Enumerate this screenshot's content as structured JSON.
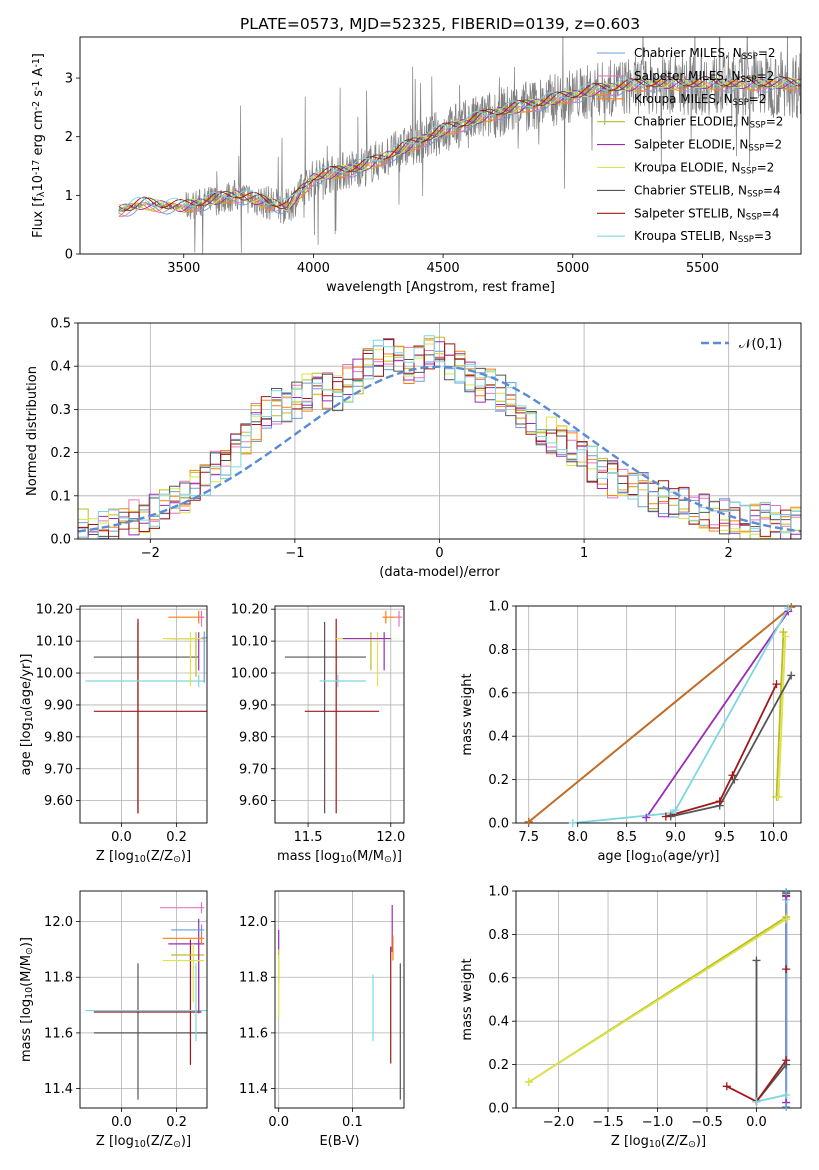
{
  "title": "PLATE=0573, MJD=52325, FIBERID=0139, z=0.603",
  "colors": {
    "grid": "#b0b0b0",
    "data_flux": "#808080",
    "gaussian": "#5b8bd6"
  },
  "chart_data": [
    {
      "id": "spectrum",
      "type": "line",
      "xlabel": "wavelength [Angstrom, rest frame]",
      "ylabel": "Flux [f$_\\lambda$10$^{-17}$ erg cm$^{-2}$ s$^{-1}$ A$^{-1}$]",
      "xlim": [
        3100,
        5880
      ],
      "ylim": [
        0,
        3.7
      ],
      "xticks": [
        3500,
        4000,
        4500,
        5000,
        5500
      ],
      "yticks": [
        0,
        1,
        2,
        3
      ],
      "grid": false,
      "legend_position": "right",
      "data_range": [
        3250,
        5880
      ],
      "observed_trend": {
        "x": [
          3250,
          3350,
          3500,
          3700,
          3900,
          4000,
          4200,
          4350,
          4500,
          4700,
          4900,
          5100,
          5300,
          5500,
          5700,
          5880
        ],
        "y": [
          0.75,
          0.85,
          0.8,
          1.0,
          0.8,
          1.3,
          1.5,
          1.8,
          2.1,
          2.4,
          2.6,
          2.8,
          2.9,
          2.9,
          2.9,
          2.9
        ]
      },
      "series": [
        {
          "name": "Chabrier MILES, N$_{SSP}$=2",
          "color": "#6a9fd8"
        },
        {
          "name": "Salpeter MILES, N$_{SSP}$=2",
          "color": "#e377c2"
        },
        {
          "name": "Kroupa MILES, N$_{SSP}$=2",
          "color": "#ff7f0e"
        },
        {
          "name": "Chabrier ELODIE, N$_{SSP}$=2",
          "color": "#bcbd22"
        },
        {
          "name": "Salpeter ELODIE, N$_{SSP}$=2",
          "color": "#9b2cb8"
        },
        {
          "name": "Kroupa ELODIE, N$_{SSP}$=2",
          "color": "#dde34a"
        },
        {
          "name": "Chabrier STELIB, N$_{SSP}$=4",
          "color": "#555555"
        },
        {
          "name": "Salpeter STELIB, N$_{SSP}$=4",
          "color": "#a01818"
        },
        {
          "name": "Kroupa STELIB, N$_{SSP}$=3",
          "color": "#7fd6e0"
        }
      ]
    },
    {
      "id": "residuals",
      "type": "area",
      "xlabel": "(data-model)/error",
      "ylabel": "Normed distribution",
      "xlim": [
        -2.5,
        2.5
      ],
      "ylim": [
        0,
        0.5
      ],
      "xticks": [
        -2,
        -1,
        0,
        1,
        2
      ],
      "yticks": [
        0.0,
        0.1,
        0.2,
        0.3,
        0.4,
        0.5
      ],
      "grid": true,
      "legend_position": "upper right",
      "gaussian": {
        "name": "$\\mathcal{N}(0,1)$",
        "mean": 0,
        "sigma": 1
      },
      "bin_width": 0.1,
      "histogram_base": [
        0.03,
        0.02,
        0.02,
        0.03,
        0.04,
        0.05,
        0.05,
        0.06,
        0.07,
        0.08,
        0.1,
        0.12,
        0.14,
        0.16,
        0.18,
        0.21,
        0.24,
        0.27,
        0.29,
        0.31,
        0.3,
        0.32,
        0.34,
        0.35,
        0.34,
        0.34,
        0.36,
        0.38,
        0.4,
        0.42,
        0.42,
        0.43,
        0.4,
        0.41,
        0.43,
        0.44,
        0.41,
        0.4,
        0.38,
        0.36,
        0.35,
        0.34,
        0.32,
        0.3,
        0.28,
        0.26,
        0.24,
        0.23,
        0.21,
        0.19,
        0.17,
        0.15,
        0.14,
        0.13,
        0.12,
        0.11,
        0.1,
        0.09,
        0.08,
        0.08,
        0.07,
        0.06,
        0.06,
        0.05,
        0.05,
        0.04,
        0.04,
        0.04,
        0.04,
        0.03,
        0.03
      ]
    },
    {
      "id": "age-vs-Z",
      "type": "scatter",
      "xlabel": "Z [log$_{10}$(Z/Z$_\\odot$)]",
      "ylabel": "age  [log$_{10}$(age/yr)]",
      "xlim": [
        -0.15,
        0.31
      ],
      "ylim": [
        9.53,
        10.21
      ],
      "xticks": [
        0.0,
        0.2
      ],
      "yticks": [
        9.6,
        9.7,
        9.8,
        9.9,
        10.0,
        10.1,
        10.2
      ],
      "grid": true,
      "points": [
        {
          "x": 0.06,
          "y": 10.05,
          "x_err": [
            0.16,
            0.22
          ],
          "y_err": [
            0.49,
            0.11
          ],
          "color": "#555555"
        },
        {
          "x": 0.06,
          "y": 9.88,
          "x_err": [
            0.16,
            0.29
          ],
          "y_err": [
            0.32,
            0.29
          ],
          "color": "#a01818"
        },
        {
          "x": 0.28,
          "y": 9.975,
          "x_err": [
            0.41,
            0.02
          ],
          "y_err": [
            0.02,
            0.02
          ],
          "color": "#7fd6e0"
        },
        {
          "x": 0.28,
          "y": 10.108,
          "x_err": [
            0.1,
            0.02
          ],
          "y_err": [
            0.1,
            0.02
          ],
          "color": "#9b2cb8"
        },
        {
          "x": 0.27,
          "y": 10.108,
          "x_err": [
            0.11,
            0.03
          ],
          "y_err": [
            0.12,
            0.02
          ],
          "color": "#bcbd22"
        },
        {
          "x": 0.25,
          "y": 10.108,
          "x_err": [
            0.1,
            0.05
          ],
          "y_err": [
            0.15,
            0.02
          ],
          "color": "#dde34a"
        },
        {
          "x": 0.28,
          "y": 10.175,
          "x_err": [
            0.11,
            0.02
          ],
          "y_err": [
            0.02,
            0.02
          ],
          "color": "#ff7f0e"
        },
        {
          "x": 0.29,
          "y": 10.175,
          "x_err": [
            0.01,
            0.01
          ],
          "y_err": [
            0.03,
            0.02
          ],
          "color": "#e377c2"
        },
        {
          "x": 0.3,
          "y": 10.11,
          "x_err": [
            0.01,
            0.01
          ],
          "y_err": [
            0.14,
            0.02
          ],
          "color": "#6a9fd8"
        }
      ]
    },
    {
      "id": "age-vs-mass",
      "type": "scatter",
      "xlabel": "mass [log$_{10}$(M/M$_\\odot$)]",
      "ylabel": "",
      "xlim": [
        11.3,
        12.08
      ],
      "ylim": [
        9.53,
        10.21
      ],
      "xticks": [
        11.5,
        12.0
      ],
      "yticks": [
        9.6,
        9.7,
        9.8,
        9.9,
        10.0,
        10.1,
        10.2
      ],
      "grid": true,
      "points": [
        {
          "x": 11.6,
          "y": 10.05,
          "x_err": [
            0.24,
            0.25
          ],
          "y_err": [
            0.49,
            0.11
          ],
          "color": "#555555"
        },
        {
          "x": 11.67,
          "y": 9.88,
          "x_err": [
            0.19,
            0.26
          ],
          "y_err": [
            0.32,
            0.29
          ],
          "color": "#a01818"
        },
        {
          "x": 11.68,
          "y": 9.975,
          "x_err": [
            0.11,
            0.17
          ],
          "y_err": [
            0.02,
            0.02
          ],
          "color": "#7fd6e0"
        },
        {
          "x": 11.88,
          "y": 10.108,
          "x_err": [
            0.21,
            0.05
          ],
          "y_err": [
            0.1,
            0.02
          ],
          "color": "#bcbd22"
        },
        {
          "x": 11.92,
          "y": 10.108,
          "x_err": [
            0.25,
            0.09
          ],
          "y_err": [
            0.15,
            0.02
          ],
          "color": "#dde34a"
        },
        {
          "x": 11.96,
          "y": 10.108,
          "x_err": [
            0.25,
            0.04
          ],
          "y_err": [
            0.1,
            0.02
          ],
          "color": "#9b2cb8"
        },
        {
          "x": 11.97,
          "y": 10.175,
          "x_err": [
            0.02,
            0.06
          ],
          "y_err": [
            0.02,
            0.02
          ],
          "color": "#ff7f0e"
        },
        {
          "x": 12.05,
          "y": 10.175,
          "x_err": [
            0.02,
            0.02
          ],
          "y_err": [
            0.03,
            0.02
          ],
          "color": "#e377c2"
        }
      ]
    },
    {
      "id": "weight-vs-age",
      "type": "line",
      "xlabel": "age  [log$_{10}$(age/yr)]",
      "ylabel": "mass weight",
      "xlim": [
        7.37,
        10.28
      ],
      "ylim": [
        0,
        1
      ],
      "xticks": [
        7.5,
        8.0,
        8.5,
        9.0,
        9.5,
        10.0
      ],
      "yticks": [
        0.0,
        0.2,
        0.4,
        0.6,
        0.8,
        1.0
      ],
      "grid": true,
      "series": [
        {
          "color": "#e377c2",
          "x": [
            7.5,
            10.18
          ],
          "y": [
            0.005,
            0.995
          ]
        },
        {
          "color": "#ff7f0e",
          "x": [
            7.5,
            10.18
          ],
          "y": [
            0.005,
            0.995
          ]
        },
        {
          "color": "#bc6f28",
          "x": [
            7.5,
            10.18
          ],
          "y": [
            0.005,
            0.995
          ]
        },
        {
          "color": "#9b2cb8",
          "x": [
            8.7,
            10.15
          ],
          "y": [
            0.025,
            0.975
          ]
        },
        {
          "color": "#7fd6e0",
          "x": [
            7.95,
            8.95,
            9.0,
            10.15
          ],
          "y": [
            0.0,
            0.045,
            0.06,
            0.99
          ]
        },
        {
          "color": "#bcbd22",
          "x": [
            10.03,
            10.1
          ],
          "y": [
            0.12,
            0.88
          ]
        },
        {
          "color": "#dde34a",
          "x": [
            10.05,
            10.12
          ],
          "y": [
            0.12,
            0.86
          ]
        },
        {
          "color": "#555555",
          "x": [
            8.95,
            9.45,
            9.6,
            10.18
          ],
          "y": [
            0.03,
            0.08,
            0.2,
            0.68
          ]
        },
        {
          "color": "#a01818",
          "x": [
            8.9,
            9.45,
            9.58,
            10.03
          ],
          "y": [
            0.03,
            0.1,
            0.22,
            0.64
          ]
        }
      ]
    },
    {
      "id": "mass-vs-Z",
      "type": "scatter",
      "xlabel": "Z [log$_{10}$(Z/Z$_\\odot$)]",
      "ylabel": "mass [log$_{10}$(M/M$_\\odot$)]",
      "xlim": [
        -0.15,
        0.31
      ],
      "ylim": [
        11.33,
        12.11
      ],
      "xticks": [
        0.0,
        0.2
      ],
      "yticks": [
        11.4,
        11.6,
        11.8,
        12.0
      ],
      "grid": true,
      "points": [
        {
          "x": 0.06,
          "y": 11.6,
          "x_err": [
            0.16,
            0.28
          ],
          "y_err": [
            0.24,
            0.25
          ],
          "color": "#555555"
        },
        {
          "x": 0.25,
          "y": 11.675,
          "x_err": [
            0.35,
            0.04
          ],
          "y_err": [
            0.19,
            0.26
          ],
          "color": "#a01818"
        },
        {
          "x": 0.27,
          "y": 11.68,
          "x_err": [
            0.4,
            0.04
          ],
          "y_err": [
            0.11,
            0.17
          ],
          "color": "#7fd6e0"
        },
        {
          "x": 0.28,
          "y": 11.88,
          "x_err": [
            0.1,
            0.02
          ],
          "y_err": [
            0.21,
            0.05
          ],
          "color": "#bcbd22"
        },
        {
          "x": 0.28,
          "y": 11.92,
          "x_err": [
            0.11,
            0.02
          ],
          "y_err": [
            0.25,
            0.09
          ],
          "color": "#9b2cb8"
        },
        {
          "x": 0.26,
          "y": 11.86,
          "x_err": [
            0.11,
            0.04
          ],
          "y_err": [
            0.15,
            0.06
          ],
          "color": "#dde34a"
        },
        {
          "x": 0.29,
          "y": 11.94,
          "x_err": [
            0.14,
            0.01
          ],
          "y_err": [
            0.02,
            0.02
          ],
          "color": "#ff7f0e"
        },
        {
          "x": 0.29,
          "y": 11.97,
          "x_err": [
            0.11,
            0.01
          ],
          "y_err": [
            0.02,
            0.02
          ],
          "color": "#6a9fd8"
        },
        {
          "x": 0.29,
          "y": 12.05,
          "x_err": [
            0.15,
            0.01
          ],
          "y_err": [
            0.02,
            0.02
          ],
          "color": "#e377c2"
        }
      ]
    },
    {
      "id": "mass-vs-ebv",
      "type": "scatter",
      "xlabel": "E(B-V)",
      "ylabel": "",
      "xlim": [
        -0.005,
        0.17
      ],
      "ylim": [
        11.33,
        12.11
      ],
      "xticks": [
        0.0,
        0.1
      ],
      "yticks": [
        11.4,
        11.6,
        11.8,
        12.0
      ],
      "grid": true,
      "points": [
        {
          "x": 0.0,
          "y": 11.93,
          "x_err": [
            0.0,
            0.0
          ],
          "y_err": [
            0.03,
            0.04
          ],
          "color": "#9b2cb8"
        },
        {
          "x": 0.0,
          "y": 11.88,
          "x_err": [
            0.0,
            0.0
          ],
          "y_err": [
            0.1,
            0.02
          ],
          "color": "#bcbd22"
        },
        {
          "x": 0.0,
          "y": 11.75,
          "x_err": [
            0.0,
            0.0
          ],
          "y_err": [
            0.1,
            0.13
          ],
          "color": "#dde34a"
        },
        {
          "x": 0.128,
          "y": 11.7,
          "x_err": [
            0.0,
            0.0
          ],
          "y_err": [
            0.13,
            0.11
          ],
          "color": "#7fd6e0"
        },
        {
          "x": 0.152,
          "y": 11.67,
          "x_err": [
            0.0,
            0.0
          ],
          "y_err": [
            0.18,
            0.24
          ],
          "color": "#a01818"
        },
        {
          "x": 0.154,
          "y": 11.97,
          "x_err": [
            0.0,
            0.0
          ],
          "y_err": [
            0.08,
            0.09
          ],
          "color": "#9b2cb8"
        },
        {
          "x": 0.155,
          "y": 11.91,
          "x_err": [
            0.0,
            0.0
          ],
          "y_err": [
            0.05,
            0.04
          ],
          "color": "#ff7f0e"
        },
        {
          "x": 0.165,
          "y": 11.6,
          "x_err": [
            0.0,
            0.0
          ],
          "y_err": [
            0.24,
            0.25
          ],
          "color": "#555555"
        }
      ]
    },
    {
      "id": "weight-vs-Z",
      "type": "line",
      "xlabel": "Z [log$_{10}$(Z/Z$_\\odot$)]",
      "ylabel": "mass weight",
      "xlim": [
        -2.43,
        0.45
      ],
      "ylim": [
        0,
        1
      ],
      "xticks": [
        -2.0,
        -1.5,
        -1.0,
        -0.5,
        0.0
      ],
      "yticks": [
        0.0,
        0.2,
        0.4,
        0.6,
        0.8,
        1.0
      ],
      "grid": true,
      "series": [
        {
          "color": "#bcbd22",
          "x": [
            -2.3,
            0.3
          ],
          "y": [
            0.12,
            0.88
          ]
        },
        {
          "color": "#dde34a",
          "x": [
            -2.3,
            0.3
          ],
          "y": [
            0.12,
            0.87
          ]
        },
        {
          "color": "#555555",
          "x": [
            0.0,
            0.0,
            0.3,
            0.3
          ],
          "y": [
            0.68,
            0.03,
            0.2,
            0.99
          ]
        },
        {
          "color": "#a01818",
          "x": [
            -0.3,
            0.0,
            0.3,
            0.3,
            0.3
          ],
          "y": [
            0.1,
            0.03,
            0.22,
            0.64,
            0.98
          ]
        },
        {
          "color": "#7fd6e0",
          "x": [
            0.0,
            0.3,
            0.3
          ],
          "y": [
            0.03,
            0.06,
            0.96
          ]
        },
        {
          "color": "#9b2cb8",
          "x": [
            0.3,
            0.3
          ],
          "y": [
            0.025,
            0.975
          ]
        },
        {
          "color": "#6a9fd8",
          "x": [
            0.3,
            0.3
          ],
          "y": [
            0.005,
            0.995
          ]
        }
      ]
    }
  ]
}
